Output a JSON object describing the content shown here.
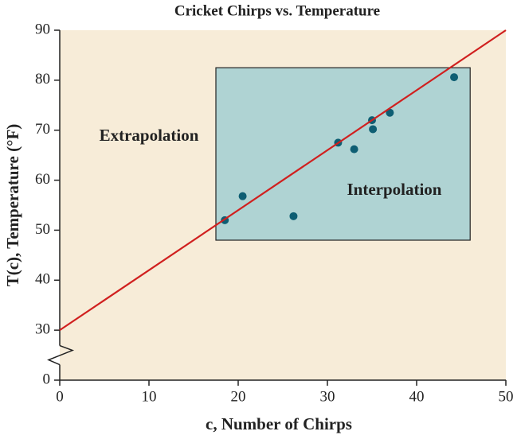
{
  "chart_data": {
    "type": "scatter",
    "title": "Cricket Chirps vs. Temperature",
    "x_label": "c, Number of Chirps",
    "y_label": "T(c), Temperature (°F)",
    "xlim": [
      0,
      50
    ],
    "xticks": [
      0,
      10,
      20,
      30,
      40,
      50
    ],
    "ylim": [
      0,
      90
    ],
    "yticks": [
      0,
      30,
      40,
      50,
      60,
      70,
      80,
      90
    ],
    "background": "#f7ecd8",
    "series": [
      {
        "type": "scatter",
        "color": "#0e5e73",
        "x": [
          18.5,
          20.5,
          26.2,
          31.2,
          33,
          35,
          35.1,
          37,
          44.2
        ],
        "values": [
          52,
          56.8,
          52.8,
          67.5,
          66.2,
          72,
          70.2,
          73.5,
          80.6
        ]
      },
      {
        "type": "line",
        "color": "#d0201f",
        "x": [
          0,
          50
        ],
        "values": [
          30,
          90
        ]
      }
    ],
    "interpolation_region": {
      "label": "Interpolation",
      "xlim": [
        17.5,
        46
      ],
      "ylim": [
        48,
        82.5
      ],
      "color": "#afd3d3"
    },
    "extrapolation_label": "Extrapolation"
  }
}
